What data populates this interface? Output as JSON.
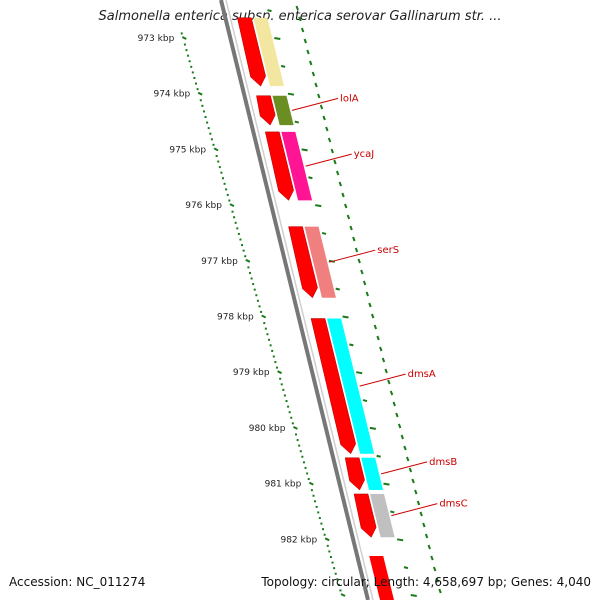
{
  "title": "Salmonella enterica subsp. enterica serovar Gallinarum str. ...",
  "footer": {
    "accession": "Accession: NC_011274",
    "summary": "Topology: circular; Length: 4,658,697 bp; Genes: 4,040"
  },
  "colors": {
    "backbone": "#777777",
    "tick_dots": "#1a7a1a",
    "cds_red": "#ff0000",
    "label_red": "#cc0000",
    "ruler_green": "#1a7a1a"
  },
  "kbp_labels": [
    "973 kbp",
    "974 kbp",
    "975 kbp",
    "976 kbp",
    "977 kbp",
    "978 kbp",
    "979 kbp",
    "980 kbp",
    "981 kbp",
    "982 kbp"
  ],
  "genes": [
    {
      "name": "",
      "start_kbp": 972.6,
      "end_kbp": 973.9,
      "color": "#f3e6a0"
    },
    {
      "name": "lolA",
      "start_kbp": 974.0,
      "end_kbp": 974.6,
      "color": "#6b8e23"
    },
    {
      "name": "ycaJ",
      "start_kbp": 974.65,
      "end_kbp": 975.95,
      "color": "#ff1493"
    },
    {
      "name": "serS",
      "start_kbp": 976.35,
      "end_kbp": 977.7,
      "color": "#f08080"
    },
    {
      "name": "dmsA",
      "start_kbp": 978.0,
      "end_kbp": 980.5,
      "color": "#00ffff"
    },
    {
      "name": "dmsB",
      "start_kbp": 980.5,
      "end_kbp": 981.15,
      "color": "#00ffff"
    },
    {
      "name": "dmsC",
      "start_kbp": 981.15,
      "end_kbp": 982.0,
      "color": "#c0c0c0"
    }
  ]
}
